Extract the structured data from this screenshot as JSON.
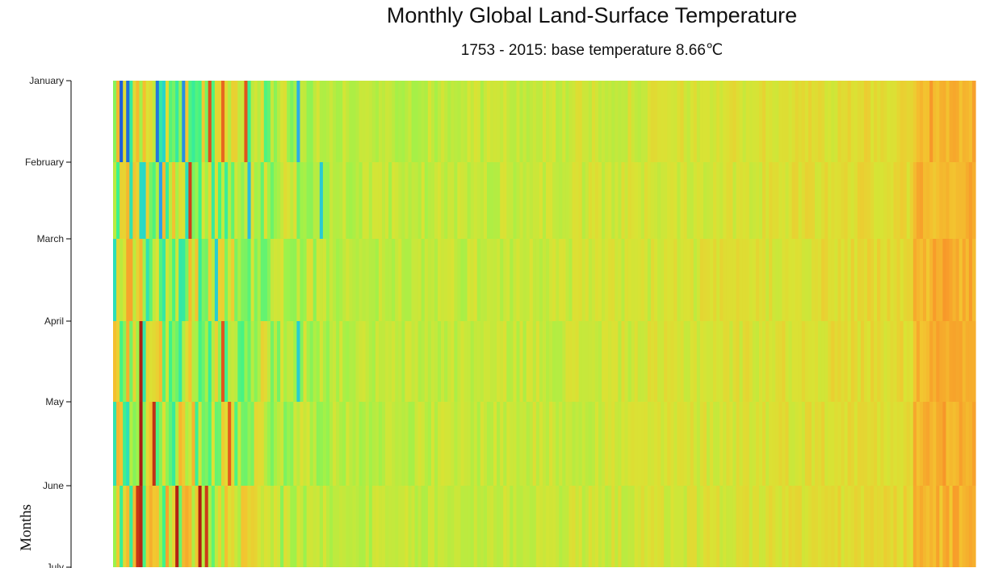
{
  "chart_data": {
    "type": "heatmap",
    "title": "Monthly Global Land-Surface Temperature",
    "subtitle": "1753 - 2015: base temperature 8.66℃",
    "ylabel": "Months",
    "base_temperature": 8.66,
    "x_range": [
      1753,
      2015
    ],
    "y_categories": [
      "January",
      "February",
      "March",
      "April",
      "May",
      "June",
      "July"
    ],
    "variance_range": [
      -6.0,
      5.2
    ],
    "color_scale": [
      "#1f5fd8",
      "#2aa9ea",
      "#28d9c8",
      "#3ef38a",
      "#9ef24a",
      "#d9e334",
      "#f3c530",
      "#f89a2a",
      "#e0521c",
      "#a51410"
    ],
    "notable_cells": [
      {
        "year": 1760,
        "month": "June",
        "variance": 4.5
      },
      {
        "year": 1760,
        "month": "July",
        "variance": 4.3
      },
      {
        "year": 1761,
        "month": "April",
        "variance": 5.0
      },
      {
        "year": 1761,
        "month": "May",
        "variance": 5.1
      },
      {
        "year": 1761,
        "month": "June",
        "variance": 4.8
      },
      {
        "year": 1765,
        "month": "May",
        "variance": 4.6
      },
      {
        "year": 1772,
        "month": "June",
        "variance": 4.9
      },
      {
        "year": 1776,
        "month": "February",
        "variance": 4.3
      },
      {
        "year": 1779,
        "month": "June",
        "variance": 5.0
      },
      {
        "year": 1781,
        "month": "June",
        "variance": 4.4
      },
      {
        "year": 1782,
        "month": "January",
        "variance": 4.0
      },
      {
        "year": 1782,
        "month": "July",
        "variance": 4.2
      },
      {
        "year": 1786,
        "month": "January",
        "variance": 3.6
      },
      {
        "year": 1786,
        "month": "April",
        "variance": 3.9
      },
      {
        "year": 1788,
        "month": "May",
        "variance": 3.8
      },
      {
        "year": 1793,
        "month": "January",
        "variance": 3.9
      },
      {
        "year": 1755,
        "month": "January",
        "variance": -6.0
      },
      {
        "year": 1757,
        "month": "January",
        "variance": -5.8
      },
      {
        "year": 1766,
        "month": "January",
        "variance": -5.6
      },
      {
        "year": 1767,
        "month": "February",
        "variance": -4.9
      },
      {
        "year": 1774,
        "month": "January",
        "variance": -5.2
      },
      {
        "year": 1784,
        "month": "March",
        "variance": -3.8
      },
      {
        "year": 1794,
        "month": "February",
        "variance": -4.2
      },
      {
        "year": 1809,
        "month": "January",
        "variance": -4.6
      },
      {
        "year": 1809,
        "month": "April",
        "variance": -3.8
      },
      {
        "year": 1816,
        "month": "February",
        "variance": -3.9
      }
    ]
  }
}
